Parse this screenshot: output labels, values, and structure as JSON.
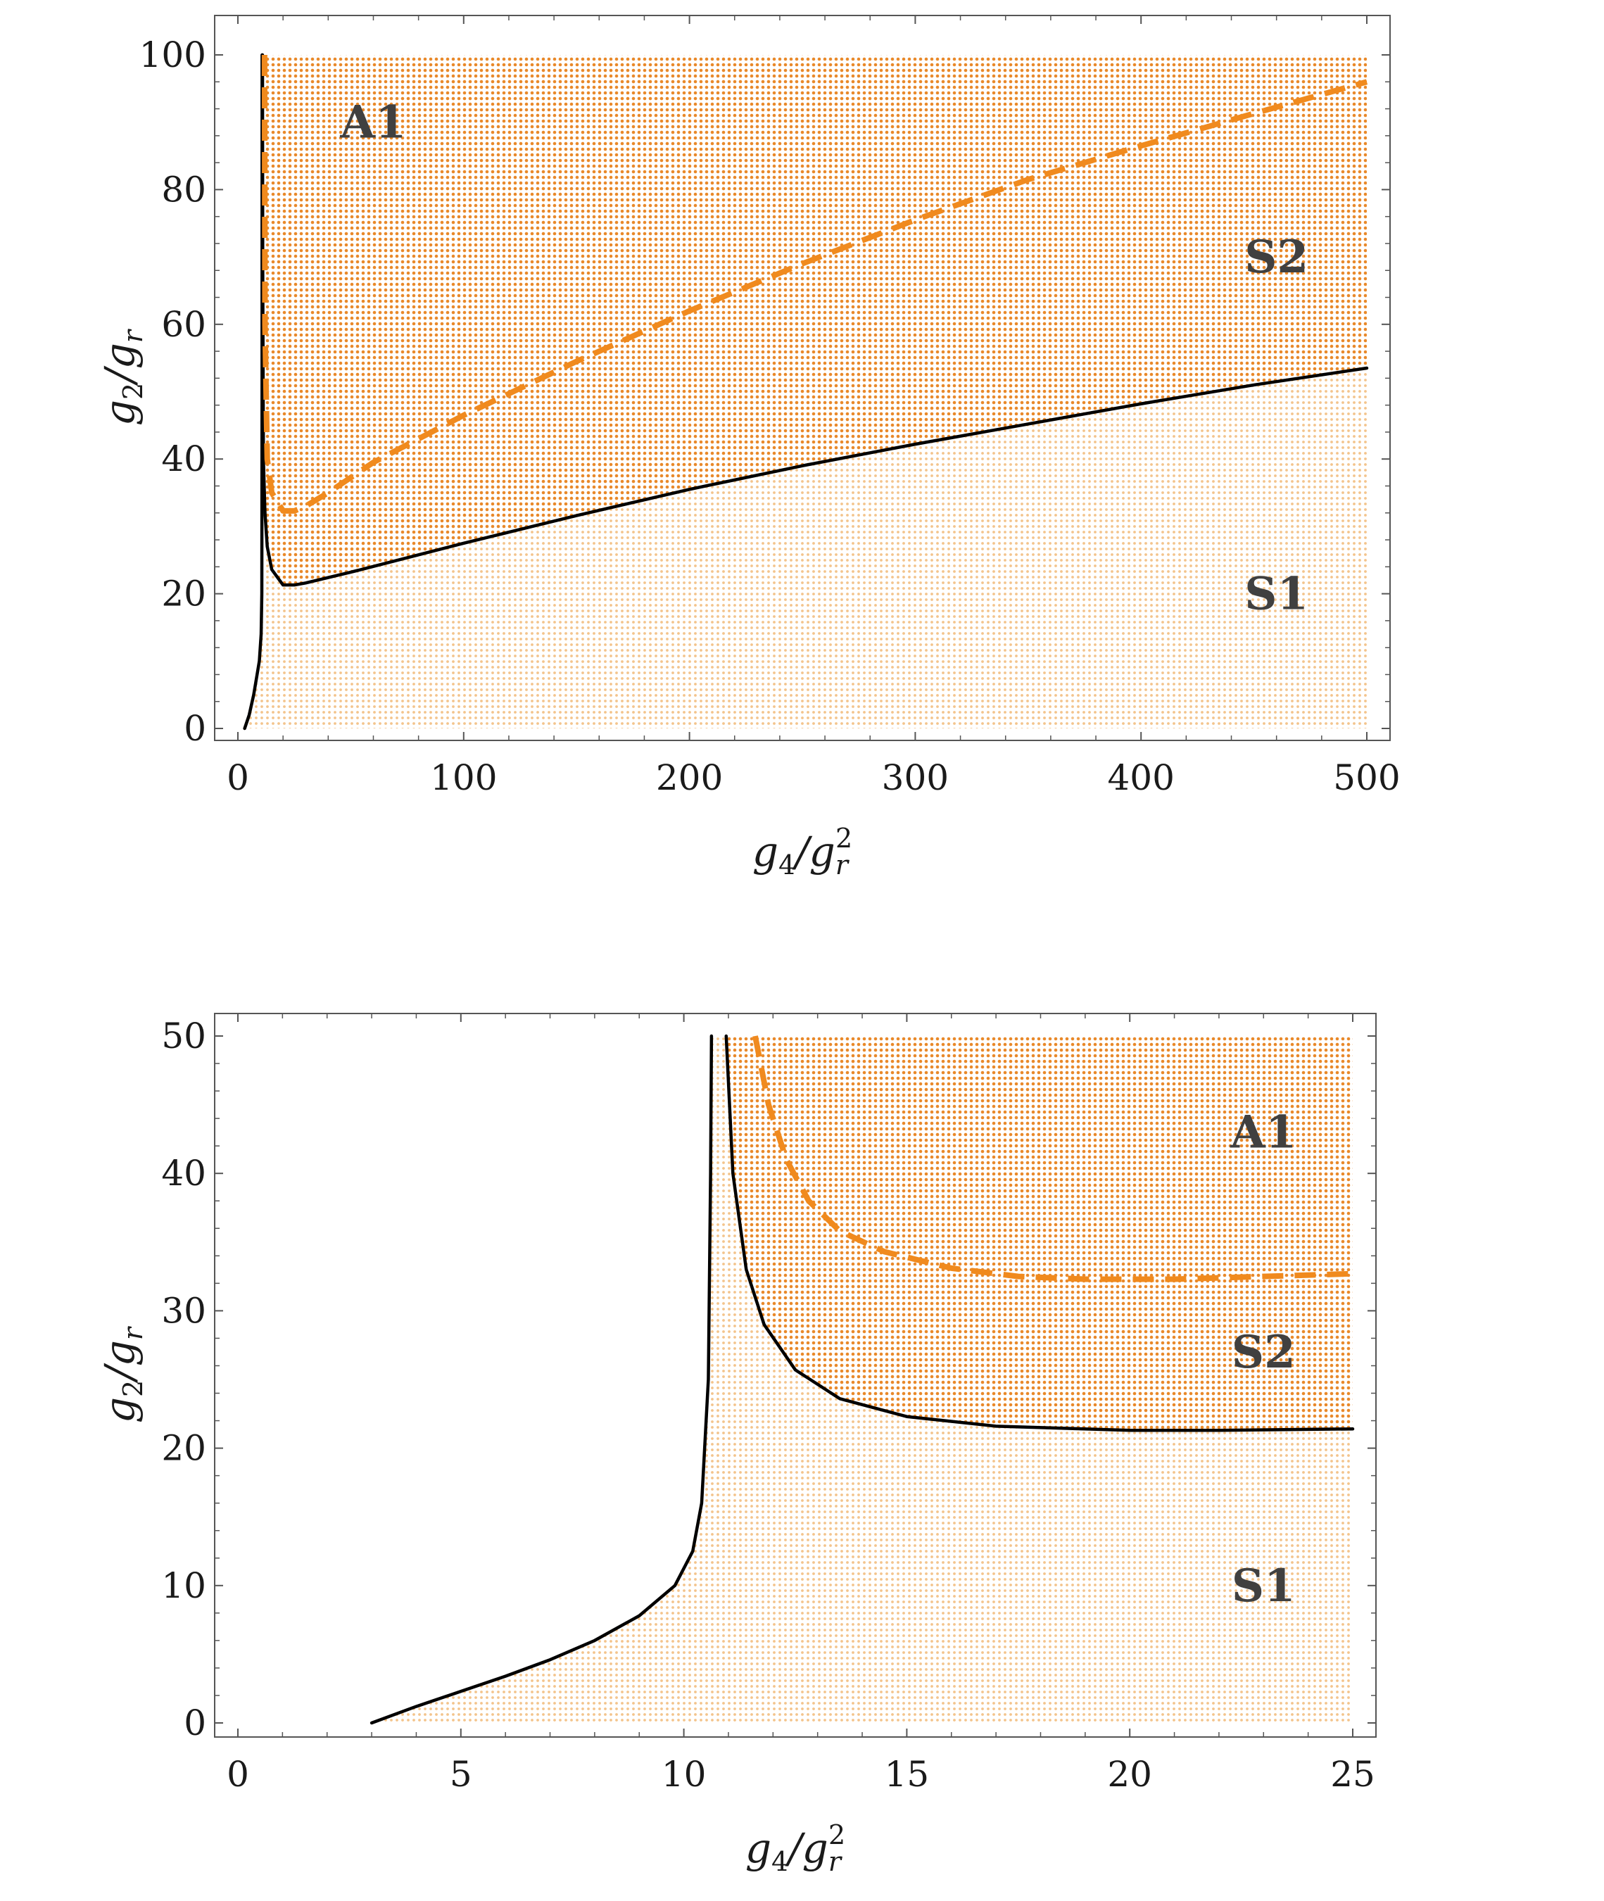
{
  "colors": {
    "boundary": "#000000",
    "dashed": "#f08a1e",
    "dots_dark": "#e9892a",
    "dots_light": "#f3c48c",
    "frame": "#555555"
  },
  "chart_data": [
    {
      "type": "line",
      "title": "",
      "xlabel": "g4/gr^2",
      "ylabel": "g2/gr",
      "xlim": [
        0,
        500
      ],
      "ylim": [
        0,
        100
      ],
      "xticks": [
        0,
        100,
        200,
        300,
        400,
        500
      ],
      "yticks": [
        0,
        20,
        40,
        60,
        80,
        100
      ],
      "xtick_labels": [
        "0",
        "100",
        "200",
        "300",
        "400",
        "500"
      ],
      "ytick_labels": [
        "0",
        "20",
        "40",
        "60",
        "80",
        "100"
      ],
      "grid": false,
      "series": [
        {
          "style": "solid",
          "color": "black",
          "points": [
            [
              3,
              0
            ],
            [
              5,
              2
            ],
            [
              7,
              5
            ],
            [
              8.5,
              8
            ],
            [
              9.5,
              10
            ],
            [
              10.3,
              14
            ],
            [
              10.6,
              20
            ],
            [
              10.7,
              50
            ],
            [
              10.72,
              100
            ]
          ]
        },
        {
          "style": "solid",
          "color": "black",
          "points": [
            [
              10.9,
              100
            ],
            [
              11.0,
              70
            ],
            [
              11.3,
              40
            ],
            [
              12,
              32
            ],
            [
              13,
              27
            ],
            [
              15,
              23.6
            ],
            [
              20,
              21.3
            ],
            [
              25,
              21.3
            ],
            [
              30,
              21.6
            ],
            [
              50,
              23.2
            ],
            [
              100,
              27.5
            ],
            [
              150,
              31.6
            ],
            [
              200,
              35.5
            ],
            [
              250,
              39
            ],
            [
              300,
              42.2
            ],
            [
              350,
              45.2
            ],
            [
              400,
              48.2
            ],
            [
              450,
              51
            ],
            [
              500,
              53.5
            ]
          ]
        },
        {
          "style": "dashed",
          "color": "orange",
          "points": [
            [
              11.8,
              100
            ],
            [
              12,
              60
            ],
            [
              13,
              40
            ],
            [
              15,
              35
            ],
            [
              20,
              32.3
            ],
            [
              25,
              32.3
            ],
            [
              30,
              33
            ],
            [
              40,
              35
            ],
            [
              60,
              39.5
            ],
            [
              100,
              46.5
            ],
            [
              150,
              54.5
            ],
            [
              200,
              62
            ],
            [
              250,
              69
            ],
            [
              300,
              75.5
            ],
            [
              350,
              81.5
            ],
            [
              400,
              86.5
            ],
            [
              450,
              91.3
            ],
            [
              500,
              96
            ]
          ]
        }
      ],
      "regions": [
        {
          "label": "A1",
          "x": 60,
          "y": 90
        },
        {
          "label": "S2",
          "x": 460,
          "y": 70
        },
        {
          "label": "S1",
          "x": 460,
          "y": 20
        }
      ]
    },
    {
      "type": "line",
      "title": "",
      "xlabel": "g4/gr^2",
      "ylabel": "g2/gr",
      "xlim": [
        0,
        25
      ],
      "ylim": [
        0,
        50
      ],
      "xticks": [
        0,
        5,
        10,
        15,
        20,
        25
      ],
      "yticks": [
        0,
        10,
        20,
        30,
        40,
        50
      ],
      "xtick_labels": [
        "0",
        "5",
        "10",
        "15",
        "20",
        "25"
      ],
      "ytick_labels": [
        "0",
        "10",
        "20",
        "30",
        "40",
        "50"
      ],
      "grid": false,
      "series": [
        {
          "style": "solid",
          "color": "black",
          "points": [
            [
              3,
              0
            ],
            [
              4,
              1.2
            ],
            [
              5,
              2.3
            ],
            [
              6,
              3.4
            ],
            [
              7,
              4.6
            ],
            [
              8,
              6
            ],
            [
              9,
              7.8
            ],
            [
              9.8,
              10
            ],
            [
              10.2,
              12.5
            ],
            [
              10.4,
              16
            ],
            [
              10.55,
              25
            ],
            [
              10.6,
              40
            ],
            [
              10.62,
              50
            ]
          ]
        },
        {
          "style": "solid",
          "color": "black",
          "points": [
            [
              10.95,
              50
            ],
            [
              11.1,
              40
            ],
            [
              11.4,
              33
            ],
            [
              11.8,
              29
            ],
            [
              12.5,
              25.7
            ],
            [
              13.5,
              23.6
            ],
            [
              15,
              22.3
            ],
            [
              17,
              21.6
            ],
            [
              20,
              21.3
            ],
            [
              22,
              21.3
            ],
            [
              25,
              21.4
            ]
          ]
        },
        {
          "style": "dashed",
          "color": "orange",
          "points": [
            [
              11.6,
              50
            ],
            [
              11.9,
              45
            ],
            [
              12.3,
              41
            ],
            [
              12.8,
              38
            ],
            [
              13.5,
              35.8
            ],
            [
              14.5,
              34.3
            ],
            [
              16,
              33.1
            ],
            [
              17.5,
              32.5
            ],
            [
              19,
              32.3
            ],
            [
              21,
              32.3
            ],
            [
              23,
              32.5
            ],
            [
              25,
              32.7
            ]
          ]
        }
      ],
      "regions": [
        {
          "label": "A1",
          "x": 23,
          "y": 43
        },
        {
          "label": "S2",
          "x": 23,
          "y": 27
        },
        {
          "label": "S1",
          "x": 23,
          "y": 10
        }
      ]
    }
  ]
}
